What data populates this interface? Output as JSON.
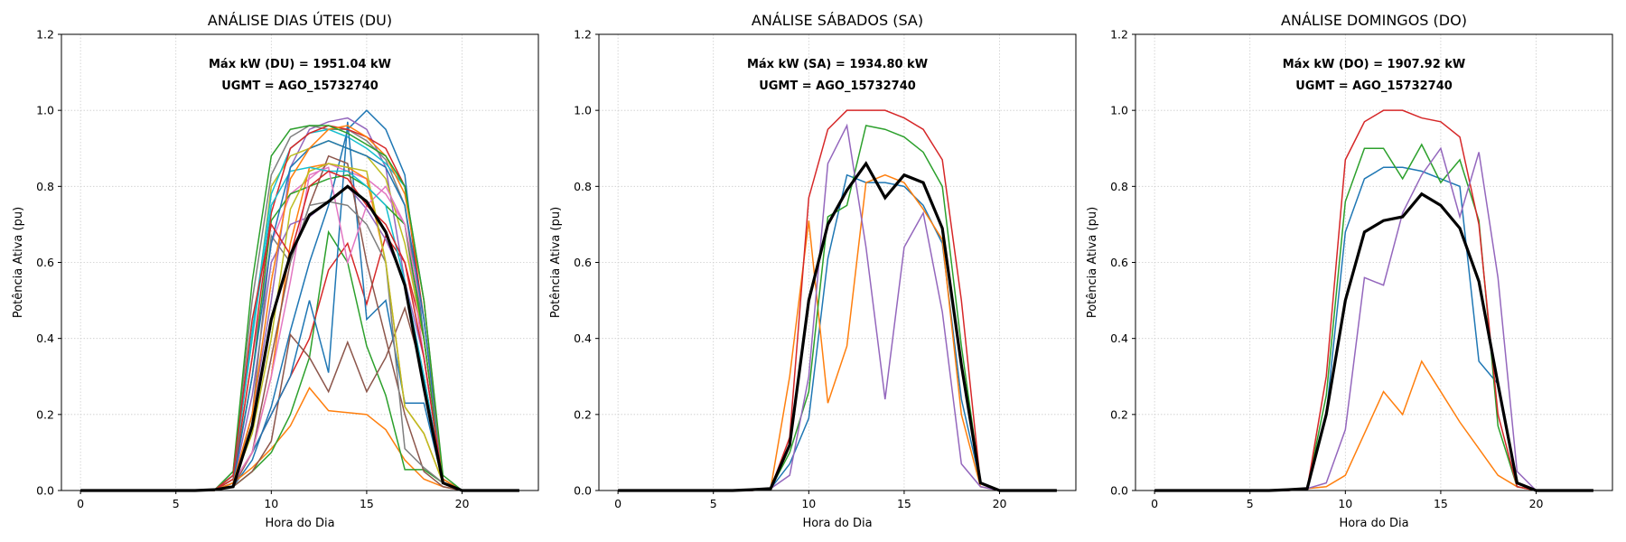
{
  "colors": {
    "grid": "#cccccc",
    "mean": "#000000",
    "palette": [
      "#1f77b4",
      "#ff7f0e",
      "#2ca02c",
      "#d62728",
      "#9467bd",
      "#8c564b",
      "#e377c2",
      "#7f7f7f",
      "#bcbd22",
      "#17becf"
    ]
  },
  "chart_data": [
    {
      "type": "line",
      "title": "ANÁLISE DIAS ÚTEIS (DU)",
      "xlabel": "Hora do Dia",
      "ylabel": "Potência Ativa (pu)",
      "xlim": [
        -1,
        24
      ],
      "ylim": [
        0,
        1.2
      ],
      "xticks": [
        0,
        5,
        10,
        15,
        20
      ],
      "yticks": [
        0.0,
        0.2,
        0.4,
        0.6,
        0.8,
        1.0,
        1.2
      ],
      "grid": true,
      "annotations": [
        "Máx kW (DU) = 1951.04 kW",
        "UGMT = AGO_15732740"
      ],
      "x": [
        0,
        1,
        2,
        3,
        4,
        5,
        6,
        7,
        8,
        9,
        10,
        11,
        12,
        13,
        14,
        15,
        16,
        17,
        18,
        19,
        20,
        21,
        22,
        23
      ],
      "series": [
        {
          "values": [
            0,
            0,
            0,
            0,
            0,
            0,
            0,
            0,
            0.01,
            0.08,
            0.22,
            0.42,
            0.6,
            0.75,
            0.95,
            1.0,
            0.95,
            0.83,
            0.4,
            0.02,
            0,
            0,
            0,
            0
          ]
        },
        {
          "values": [
            0,
            0,
            0,
            0,
            0,
            0,
            0,
            0,
            0.02,
            0.06,
            0.11,
            0.17,
            0.27,
            0.21,
            0.205,
            0.2,
            0.16,
            0.08,
            0.03,
            0.01,
            0,
            0,
            0,
            0
          ]
        },
        {
          "values": [
            0,
            0,
            0,
            0,
            0,
            0,
            0,
            0,
            0.01,
            0.05,
            0.1,
            0.2,
            0.35,
            0.68,
            0.6,
            0.38,
            0.25,
            0.055,
            0.055,
            0.02,
            0,
            0,
            0,
            0
          ]
        },
        {
          "values": [
            0,
            0,
            0,
            0,
            0,
            0,
            0,
            0,
            0.02,
            0.1,
            0.2,
            0.3,
            0.4,
            0.58,
            0.65,
            0.49,
            0.67,
            0.6,
            0.4,
            0.02,
            0,
            0,
            0,
            0
          ]
        },
        {
          "values": [
            0,
            0,
            0,
            0,
            0,
            0,
            0,
            0,
            0.02,
            0.2,
            0.5,
            0.85,
            0.95,
            0.97,
            0.98,
            0.95,
            0.85,
            0.55,
            0.3,
            0.02,
            0,
            0,
            0,
            0
          ]
        },
        {
          "values": [
            0,
            0,
            0,
            0,
            0,
            0,
            0,
            0,
            0.01,
            0.05,
            0.13,
            0.41,
            0.35,
            0.26,
            0.39,
            0.26,
            0.35,
            0.48,
            0.3,
            0.02,
            0,
            0,
            0,
            0
          ]
        },
        {
          "values": [
            0,
            0,
            0,
            0,
            0,
            0,
            0,
            0,
            0.03,
            0.35,
            0.65,
            0.78,
            0.82,
            0.86,
            0.84,
            0.82,
            0.78,
            0.7,
            0.35,
            0.03,
            0,
            0,
            0,
            0
          ]
        },
        {
          "values": [
            0,
            0,
            0,
            0,
            0,
            0,
            0,
            0,
            0.05,
            0.5,
            0.83,
            0.93,
            0.96,
            0.95,
            0.95,
            0.92,
            0.87,
            0.75,
            0.4,
            0.03,
            0,
            0,
            0,
            0
          ]
        },
        {
          "values": [
            0,
            0,
            0,
            0,
            0,
            0,
            0,
            0,
            0.04,
            0.4,
            0.8,
            0.88,
            0.9,
            0.92,
            0.9,
            0.88,
            0.82,
            0.65,
            0.4,
            0.03,
            0,
            0,
            0,
            0
          ]
        },
        {
          "values": [
            0,
            0,
            0,
            0,
            0,
            0,
            0,
            0,
            0.04,
            0.42,
            0.78,
            0.9,
            0.94,
            0.95,
            0.93,
            0.9,
            0.86,
            0.8,
            0.5,
            0.03,
            0,
            0,
            0,
            0
          ]
        },
        {
          "values": [
            0,
            0,
            0,
            0,
            0,
            0,
            0,
            0,
            0.02,
            0.1,
            0.2,
            0.3,
            0.5,
            0.31,
            0.97,
            0.45,
            0.5,
            0.23,
            0.23,
            0.02,
            0,
            0,
            0,
            0
          ]
        },
        {
          "values": [
            0,
            0,
            0,
            0,
            0,
            0,
            0,
            0,
            0.02,
            0.1,
            0.3,
            0.65,
            0.85,
            0.86,
            0.85,
            0.82,
            0.6,
            0.22,
            0.15,
            0.02,
            0,
            0,
            0,
            0
          ]
        },
        {
          "values": [
            0,
            0,
            0,
            0,
            0,
            0,
            0,
            0,
            0.03,
            0.3,
            0.71,
            0.78,
            0.8,
            0.82,
            0.83,
            0.8,
            0.75,
            0.7,
            0.4,
            0.02,
            0,
            0,
            0,
            0
          ]
        },
        {
          "values": [
            0,
            0,
            0,
            0,
            0,
            0,
            0,
            0,
            0.03,
            0.35,
            0.73,
            0.9,
            0.94,
            0.96,
            0.95,
            0.93,
            0.9,
            0.8,
            0.45,
            0.03,
            0,
            0,
            0,
            0
          ]
        },
        {
          "values": [
            0,
            0,
            0,
            0,
            0,
            0,
            0,
            0,
            0.02,
            0.25,
            0.6,
            0.7,
            0.72,
            0.76,
            0.8,
            0.74,
            0.66,
            0.55,
            0.35,
            0.02,
            0,
            0,
            0,
            0
          ]
        },
        {
          "values": [
            0,
            0,
            0,
            0,
            0,
            0,
            0,
            0,
            0.01,
            0.1,
            0.35,
            0.6,
            0.75,
            0.88,
            0.86,
            0.6,
            0.4,
            0.2,
            0.05,
            0.01,
            0,
            0,
            0,
            0
          ]
        },
        {
          "values": [
            0,
            0,
            0,
            0,
            0,
            0,
            0,
            0,
            0.02,
            0.1,
            0.3,
            0.55,
            0.83,
            0.85,
            0.6,
            0.75,
            0.8,
            0.7,
            0.45,
            0.02,
            0,
            0,
            0,
            0
          ]
        },
        {
          "values": [
            0,
            0,
            0,
            0,
            0,
            0,
            0,
            0,
            0.01,
            0.2,
            0.67,
            0.6,
            0.75,
            0.76,
            0.75,
            0.7,
            0.6,
            0.11,
            0.06,
            0.02,
            0,
            0,
            0,
            0
          ]
        },
        {
          "values": [
            0,
            0,
            0,
            0,
            0,
            0,
            0,
            0,
            0.02,
            0.15,
            0.4,
            0.74,
            0.84,
            0.86,
            0.85,
            0.84,
            0.6,
            0.22,
            0.15,
            0.02,
            0,
            0,
            0,
            0
          ]
        },
        {
          "values": [
            0,
            0,
            0,
            0,
            0,
            0,
            0,
            0,
            0.04,
            0.4,
            0.75,
            0.84,
            0.85,
            0.84,
            0.84,
            0.8,
            0.75,
            0.55,
            0.3,
            0.02,
            0,
            0,
            0,
            0
          ]
        },
        {
          "values": [
            0,
            0,
            0,
            0,
            0,
            0,
            0,
            0,
            0.02,
            0.3,
            0.65,
            0.85,
            0.9,
            0.92,
            0.9,
            0.88,
            0.85,
            0.75,
            0.45,
            0.03,
            0,
            0,
            0,
            0
          ]
        },
        {
          "values": [
            0,
            0,
            0,
            0,
            0,
            0,
            0,
            0,
            0.02,
            0.2,
            0.55,
            0.82,
            0.9,
            0.95,
            0.96,
            0.93,
            0.88,
            0.78,
            0.5,
            0.03,
            0,
            0,
            0,
            0
          ]
        },
        {
          "values": [
            0,
            0,
            0,
            0,
            0,
            0,
            0,
            0,
            0.05,
            0.55,
            0.88,
            0.95,
            0.96,
            0.96,
            0.94,
            0.91,
            0.88,
            0.8,
            0.5,
            0.04,
            0,
            0,
            0,
            0
          ]
        },
        {
          "values": [
            0,
            0,
            0,
            0,
            0,
            0,
            0,
            0,
            0.04,
            0.45,
            0.7,
            0.62,
            0.8,
            0.84,
            0.82,
            0.75,
            0.7,
            0.6,
            0.35,
            0.02,
            0,
            0,
            0,
            0
          ]
        },
        {
          "role": "mean",
          "values": [
            0,
            0,
            0,
            0,
            0,
            0,
            0,
            0.002,
            0.01,
            0.17,
            0.45,
            0.62,
            0.725,
            0.76,
            0.8,
            0.76,
            0.68,
            0.54,
            0.27,
            0.02,
            0,
            0,
            0,
            0
          ]
        }
      ]
    },
    {
      "type": "line",
      "title": "ANÁLISE SÁBADOS (SA)",
      "xlabel": "Hora do Dia",
      "ylabel": "Potência Ativa (pu)",
      "xlim": [
        -1,
        24
      ],
      "ylim": [
        0,
        1.2
      ],
      "xticks": [
        0,
        5,
        10,
        15,
        20
      ],
      "yticks": [
        0.0,
        0.2,
        0.4,
        0.6,
        0.8,
        1.0,
        1.2
      ],
      "grid": true,
      "annotations": [
        "Máx kW (SA) = 1934.80 kW",
        "UGMT = AGO_15732740"
      ],
      "x": [
        0,
        1,
        2,
        3,
        4,
        5,
        6,
        7,
        8,
        9,
        10,
        11,
        12,
        13,
        14,
        15,
        16,
        17,
        18,
        19,
        20,
        21,
        22,
        23
      ],
      "series": [
        {
          "values": [
            0,
            0,
            0,
            0,
            0,
            0,
            0,
            0,
            0.005,
            0.07,
            0.19,
            0.61,
            0.83,
            0.81,
            0.81,
            0.8,
            0.75,
            0.65,
            0.24,
            0.02,
            0,
            0,
            0,
            0
          ]
        },
        {
          "values": [
            0,
            0,
            0,
            0,
            0,
            0,
            0,
            0,
            0.005,
            0.3,
            0.71,
            0.23,
            0.38,
            0.81,
            0.83,
            0.81,
            0.74,
            0.66,
            0.2,
            0.01,
            0,
            0,
            0,
            0
          ]
        },
        {
          "values": [
            0,
            0,
            0,
            0,
            0,
            0,
            0,
            0,
            0.005,
            0.1,
            0.26,
            0.72,
            0.75,
            0.96,
            0.95,
            0.93,
            0.89,
            0.8,
            0.38,
            0.02,
            0,
            0,
            0,
            0
          ]
        },
        {
          "values": [
            0,
            0,
            0,
            0,
            0,
            0,
            0,
            0,
            0.005,
            0.14,
            0.77,
            0.95,
            1.0,
            1.0,
            1.0,
            0.98,
            0.95,
            0.87,
            0.5,
            0.02,
            0,
            0,
            0,
            0
          ]
        },
        {
          "values": [
            0,
            0,
            0,
            0,
            0,
            0,
            0,
            0,
            0.005,
            0.04,
            0.3,
            0.86,
            0.96,
            0.64,
            0.24,
            0.64,
            0.73,
            0.47,
            0.07,
            0.01,
            0,
            0,
            0,
            0
          ]
        },
        {
          "role": "mean",
          "values": [
            0,
            0,
            0,
            0,
            0,
            0,
            0,
            0.002,
            0.005,
            0.12,
            0.5,
            0.7,
            0.79,
            0.86,
            0.77,
            0.83,
            0.81,
            0.69,
            0.33,
            0.02,
            0,
            0,
            0,
            0
          ]
        }
      ]
    },
    {
      "type": "line",
      "title": "ANÁLISE DOMINGOS (DO)",
      "xlabel": "Hora do Dia",
      "ylabel": "Potência Ativa (pu)",
      "xlim": [
        -1,
        24
      ],
      "ylim": [
        0,
        1.2
      ],
      "xticks": [
        0,
        5,
        10,
        15,
        20
      ],
      "yticks": [
        0.0,
        0.2,
        0.4,
        0.6,
        0.8,
        1.0,
        1.2
      ],
      "grid": true,
      "annotations": [
        "Máx kW (DO) = 1907.92 kW",
        "UGMT = AGO_15732740"
      ],
      "x": [
        0,
        1,
        2,
        3,
        4,
        5,
        6,
        7,
        8,
        9,
        10,
        11,
        12,
        13,
        14,
        15,
        16,
        17,
        18,
        19,
        20,
        21,
        22,
        23
      ],
      "series": [
        {
          "values": [
            0,
            0,
            0,
            0,
            0,
            0,
            0,
            0,
            0.005,
            0.2,
            0.68,
            0.82,
            0.85,
            0.85,
            0.84,
            0.82,
            0.8,
            0.34,
            0.28,
            0.02,
            0,
            0,
            0,
            0
          ]
        },
        {
          "values": [
            0,
            0,
            0,
            0,
            0,
            0,
            0,
            0,
            0.005,
            0.01,
            0.04,
            0.15,
            0.26,
            0.2,
            0.34,
            0.26,
            0.18,
            0.11,
            0.04,
            0.01,
            0,
            0,
            0,
            0
          ]
        },
        {
          "values": [
            0,
            0,
            0,
            0,
            0,
            0,
            0,
            0,
            0.005,
            0.25,
            0.76,
            0.9,
            0.9,
            0.82,
            0.91,
            0.81,
            0.87,
            0.71,
            0.17,
            0.01,
            0,
            0,
            0,
            0
          ]
        },
        {
          "values": [
            0,
            0,
            0,
            0,
            0,
            0,
            0,
            0,
            0.005,
            0.3,
            0.87,
            0.97,
            1.0,
            1.0,
            0.98,
            0.97,
            0.93,
            0.7,
            0.2,
            0.01,
            0,
            0,
            0,
            0
          ]
        },
        {
          "values": [
            0,
            0,
            0,
            0,
            0,
            0,
            0,
            0,
            0.005,
            0.02,
            0.16,
            0.56,
            0.54,
            0.73,
            0.83,
            0.9,
            0.72,
            0.89,
            0.56,
            0.05,
            0,
            0,
            0,
            0
          ]
        },
        {
          "role": "mean",
          "values": [
            0,
            0,
            0,
            0,
            0,
            0,
            0,
            0.002,
            0.005,
            0.2,
            0.5,
            0.68,
            0.71,
            0.72,
            0.78,
            0.75,
            0.69,
            0.55,
            0.28,
            0.02,
            0,
            0,
            0,
            0
          ]
        }
      ]
    }
  ]
}
